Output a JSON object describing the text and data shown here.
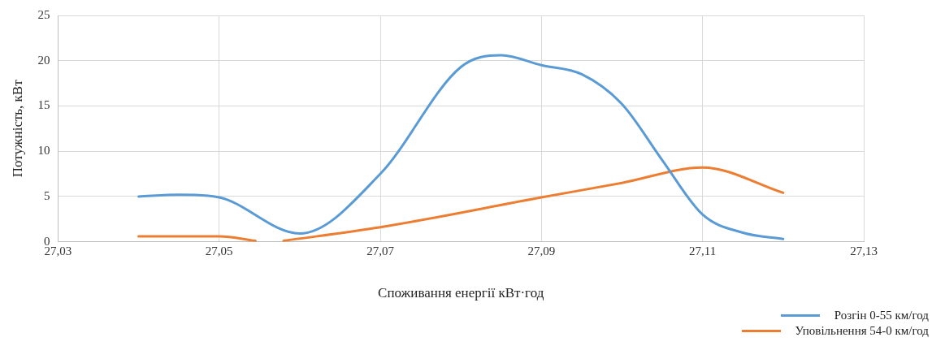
{
  "chart_data": {
    "type": "line",
    "xlabel": "Споживання енергії кВт·год",
    "ylabel": "Потужність, кВт",
    "xlim": [
      27.03,
      27.13
    ],
    "xticks": [
      {
        "value": 27.03,
        "label": "27,03"
      },
      {
        "value": 27.05,
        "label": "27,05"
      },
      {
        "value": 27.07,
        "label": "27,07"
      },
      {
        "value": 27.09,
        "label": "27,09"
      },
      {
        "value": 27.11,
        "label": "27,11"
      },
      {
        "value": 27.13,
        "label": "27,13"
      }
    ],
    "ylim": [
      0,
      25
    ],
    "yticks": [
      0,
      5,
      10,
      15,
      20,
      25
    ],
    "grid": true,
    "legend": "bottom right",
    "marker": "none",
    "line_style": "solid",
    "series": [
      {
        "name": "Розгін 0-55 км/год",
        "color": "#5b9bd5",
        "x": [
          27.04,
          27.045,
          27.05,
          27.06,
          27.07,
          27.08,
          27.085,
          27.09,
          27.095,
          27.1,
          27.105,
          27.11,
          27.115,
          27.12
        ],
        "values": [
          5,
          5.2,
          4.9,
          0.9,
          7.5,
          19.3,
          20.6,
          19.5,
          18.5,
          15.2,
          9,
          3,
          1,
          0.3
        ]
      },
      {
        "name": "Уповільнення 54-0 км/год",
        "color": "#ed7d31",
        "x": [
          27.04,
          27.05,
          27.0545,
          27.056,
          27.058,
          27.07,
          27.09,
          27.1,
          27.11,
          27.12
        ],
        "values": [
          0.6,
          0.6,
          0.1,
          null,
          0.1,
          1.6,
          4.9,
          6.5,
          8.2,
          5.4
        ]
      }
    ]
  }
}
